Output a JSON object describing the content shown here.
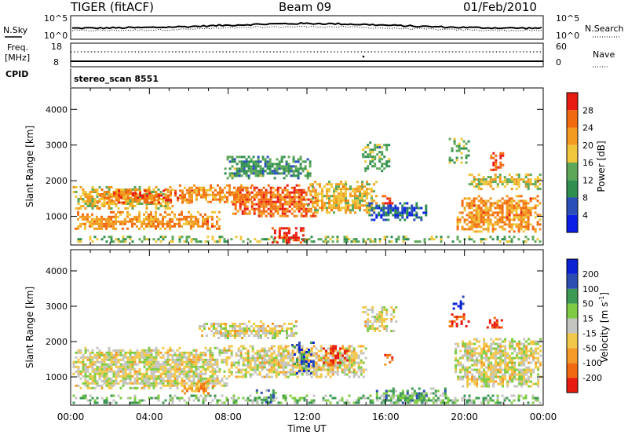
{
  "header": {
    "radar": "TIGER (fitACF)",
    "beam": "Beam 09",
    "date": "01/Feb/2010"
  },
  "nsky_panel": {
    "left_label": "N.Sky",
    "right_label": "N.Search",
    "ticks_left": [
      "10^5",
      "10^0"
    ],
    "ticks_right": [
      "10^5",
      "10^0"
    ]
  },
  "freq_panel": {
    "left_label_line1": "Freq.",
    "left_label_line2": "[MHz]",
    "ticks_left": [
      "18",
      "8"
    ],
    "ticks_right": [
      "60",
      "0"
    ],
    "right_label": "Nave"
  },
  "cpid": {
    "label": "CPID",
    "mode": "stereo_scan 8551"
  },
  "colors": {
    "power_scale": [
      "#0a1ee6",
      "#2a4fb8",
      "#2f8f4f",
      "#5ca858",
      "#f0c63a",
      "#f39a20",
      "#f26a10",
      "#e81b10"
    ],
    "velocity_scale": [
      "#e81b10",
      "#f26a10",
      "#f59a28",
      "#f2c84a",
      "#c4c4c0",
      "#7fcc44",
      "#3c9a55",
      "#2d4cb2",
      "#0a22d4"
    ]
  },
  "chart_data": [
    {
      "type": "heatmap",
      "name_printed": "Power [dB]",
      "ylabel": "Slant Range [km]",
      "xlabel": "Time UT",
      "x_ticks": [
        "00:00",
        "04:00",
        "08:00",
        "12:00",
        "16:00",
        "20:00",
        "00:00"
      ],
      "y_ticks": [
        1000,
        2000,
        3000,
        4000
      ],
      "ylim": [
        200,
        4600
      ],
      "xlim_hours": [
        0,
        24
      ],
      "colorbar_ticks": [
        "4",
        "8",
        "12",
        "16",
        "20",
        "24",
        "28"
      ],
      "colorbar_label": "Power [dB]",
      "echo_regions": [
        {
          "t0": 0.1,
          "t1": 23.9,
          "r0": 280,
          "r1": 460,
          "level": 0.45
        },
        {
          "t0": 0.1,
          "t1": 5.2,
          "r0": 1200,
          "r1": 1850,
          "level": 0.6
        },
        {
          "t0": 1.2,
          "t1": 6.2,
          "r0": 1400,
          "r1": 1750,
          "level": 0.82
        },
        {
          "t0": 5.5,
          "t1": 9.2,
          "r0": 1400,
          "r1": 1900,
          "level": 0.7
        },
        {
          "t0": 8.2,
          "t1": 12.5,
          "r0": 1000,
          "r1": 1900,
          "level": 0.8
        },
        {
          "t0": 10.2,
          "t1": 11.8,
          "r0": 300,
          "r1": 700,
          "level": 0.95
        },
        {
          "t0": 12.0,
          "t1": 15.5,
          "r0": 1100,
          "r1": 2000,
          "level": 0.6
        },
        {
          "t0": 7.8,
          "t1": 12.2,
          "r0": 2100,
          "r1": 2700,
          "level": 0.35
        },
        {
          "t0": 14.8,
          "t1": 16.2,
          "r0": 2300,
          "r1": 3100,
          "level": 0.4
        },
        {
          "t0": 15.0,
          "t1": 18.0,
          "r0": 900,
          "r1": 1400,
          "level": 0.2
        },
        {
          "t0": 15.8,
          "t1": 16.3,
          "r0": 1350,
          "r1": 1600,
          "level": 0.95
        },
        {
          "t0": 19.6,
          "t1": 23.9,
          "r0": 600,
          "r1": 1600,
          "level": 0.72
        },
        {
          "t0": 20.2,
          "t1": 23.8,
          "r0": 1800,
          "r1": 2200,
          "level": 0.55
        },
        {
          "t0": 21.3,
          "t1": 22.0,
          "r0": 2300,
          "r1": 2800,
          "level": 0.85
        },
        {
          "t0": 19.2,
          "t1": 20.2,
          "r0": 2500,
          "r1": 3200,
          "level": 0.45
        },
        {
          "t0": 0.2,
          "t1": 7.6,
          "r0": 650,
          "r1": 1150,
          "level": 0.72
        }
      ]
    },
    {
      "type": "heatmap",
      "name_printed": "Velocity [m s^-1]",
      "ylabel": "Slant Range [km]",
      "xlabel": "Time UT",
      "x_ticks": [
        "00:00",
        "04:00",
        "08:00",
        "12:00",
        "16:00",
        "20:00",
        "00:00"
      ],
      "y_ticks": [
        1000,
        2000,
        3000,
        4000
      ],
      "ylim": [
        200,
        4600
      ],
      "xlim_hours": [
        0,
        24
      ],
      "colorbar_ticks": [
        "200",
        "100",
        "50",
        "15",
        "-15",
        "-50",
        "-100",
        "-200"
      ],
      "colorbar_label_main": "Velocity [m s",
      "colorbar_label_sup": "-1",
      "colorbar_label_end": "]",
      "echo_regions": [
        {
          "t0": 0.1,
          "t1": 23.9,
          "r0": 280,
          "r1": 500,
          "level": 0.62
        },
        {
          "t0": 0.1,
          "t1": 8.0,
          "r0": 650,
          "r1": 1850,
          "level": 0.47
        },
        {
          "t0": 8.0,
          "t1": 15.0,
          "r0": 1000,
          "r1": 1900,
          "level": 0.45
        },
        {
          "t0": 5.5,
          "t1": 7.2,
          "r0": 500,
          "r1": 900,
          "level": 0.3
        },
        {
          "t0": 9.4,
          "t1": 10.4,
          "r0": 250,
          "r1": 650,
          "level": 0.68
        },
        {
          "t0": 11.2,
          "t1": 12.3,
          "r0": 1100,
          "r1": 2000,
          "level": 0.88
        },
        {
          "t0": 12.8,
          "t1": 14.0,
          "r0": 1300,
          "r1": 1900,
          "level": 0.12
        },
        {
          "t0": 15.8,
          "t1": 16.3,
          "r0": 1350,
          "r1": 1650,
          "level": 0.08
        },
        {
          "t0": 15.5,
          "t1": 19.0,
          "r0": 250,
          "r1": 700,
          "level": 0.65
        },
        {
          "t0": 19.4,
          "t1": 20.1,
          "r0": 2900,
          "r1": 3300,
          "level": 0.9
        },
        {
          "t0": 19.2,
          "t1": 20.2,
          "r0": 2400,
          "r1": 2800,
          "level": 0.08
        },
        {
          "t0": 21.0,
          "t1": 22.0,
          "r0": 2400,
          "r1": 2700,
          "level": 0.06
        },
        {
          "t0": 19.5,
          "t1": 23.9,
          "r0": 700,
          "r1": 2100,
          "level": 0.47
        },
        {
          "t0": 6.5,
          "t1": 11.5,
          "r0": 2100,
          "r1": 2600,
          "level": 0.46
        },
        {
          "t0": 14.8,
          "t1": 16.5,
          "r0": 2300,
          "r1": 3000,
          "level": 0.46
        }
      ]
    }
  ]
}
